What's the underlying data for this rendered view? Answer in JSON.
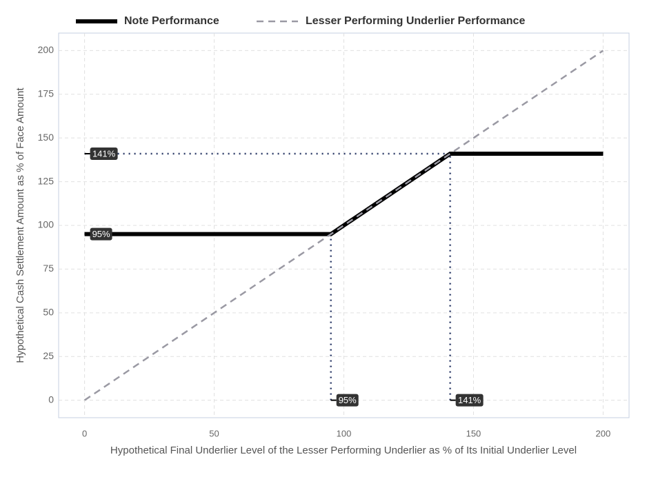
{
  "chart_data": {
    "type": "line",
    "xlabel": "Hypothetical Final Underlier Level of the Lesser Performing Underlier as % of Its Initial Underlier Level",
    "ylabel": "Hypothetical Cash Settlement Amount as % of Face Amount",
    "series": [
      {
        "name": "Note Performance",
        "color": "#000000",
        "style": "solid",
        "x": [
          0,
          95,
          141,
          200
        ],
        "values": [
          95,
          95,
          141,
          141
        ]
      },
      {
        "name": "Lesser Performing Underlier Performance",
        "color": "#9a99a3",
        "style": "dashed",
        "x": [
          0,
          200
        ],
        "values": [
          0,
          200
        ]
      }
    ],
    "reference_lines": [
      {
        "value": 95,
        "label": "95%"
      },
      {
        "value": 141,
        "label": "141%"
      }
    ],
    "reference_color": "#2b3a67",
    "xlim": [
      -10,
      210
    ],
    "ylim": [
      -10,
      210
    ],
    "xticks": [
      0,
      50,
      100,
      150,
      200
    ],
    "yticks": [
      0,
      25,
      50,
      75,
      100,
      125,
      150,
      175,
      200
    ],
    "grid": true,
    "legend": "top"
  }
}
